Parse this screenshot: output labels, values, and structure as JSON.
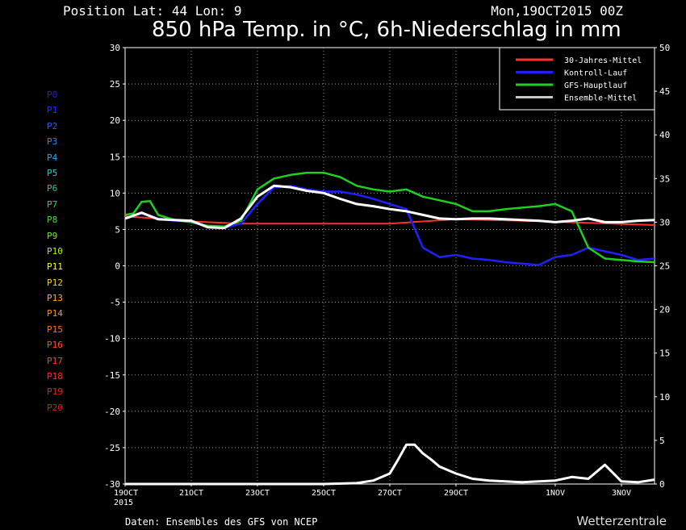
{
  "header": {
    "position": "Position   Lat: 44 Lon: 9",
    "date": "Mon,19OCT2015 00Z",
    "title": "850 hPa Temp. in °C, 6h-Niederschlag in mm"
  },
  "footer": {
    "source": "Daten: Ensembles des GFS von NCEP",
    "brand": "Wetterzentrale"
  },
  "members": [
    {
      "label": "P0",
      "color": "#2020e0"
    },
    {
      "label": "P1",
      "color": "#2030ff"
    },
    {
      "label": "P2",
      "color": "#2060ff"
    },
    {
      "label": "P3",
      "color": "#2090f0"
    },
    {
      "label": "P4",
      "color": "#20b0f0"
    },
    {
      "label": "P5",
      "color": "#20d0d0"
    },
    {
      "label": "P6",
      "color": "#20d080"
    },
    {
      "label": "P7",
      "color": "#20e040"
    },
    {
      "label": "P8",
      "color": "#40e020"
    },
    {
      "label": "P9",
      "color": "#70f020"
    },
    {
      "label": "P10",
      "color": "#b0f020"
    },
    {
      "label": "P11",
      "color": "#ffff20"
    },
    {
      "label": "P12",
      "color": "#ffd020"
    },
    {
      "label": "P13",
      "color": "#ffb020"
    },
    {
      "label": "P14",
      "color": "#ff9020"
    },
    {
      "label": "P15",
      "color": "#ff7020"
    },
    {
      "label": "P16",
      "color": "#ff5020"
    },
    {
      "label": "P17",
      "color": "#ff4020"
    },
    {
      "label": "P18",
      "color": "#ff3020"
    },
    {
      "label": "P19",
      "color": "#e02020"
    },
    {
      "label": "P20",
      "color": "#d02020"
    }
  ],
  "chart_data": {
    "type": "line",
    "x_range": [
      "19OCT2015 00Z",
      "4NOV2015 00Z"
    ],
    "x_step_hours": 6,
    "x_ticks": [
      {
        "label": "19OCT",
        "day": 0,
        "sub": "2015"
      },
      {
        "label": "21OCT",
        "day": 2
      },
      {
        "label": "23OCT",
        "day": 4
      },
      {
        "label": "25OCT",
        "day": 6
      },
      {
        "label": "27OCT",
        "day": 8
      },
      {
        "label": "29OCT",
        "day": 10
      },
      {
        "label": "1NOV",
        "day": 13
      },
      {
        "label": "3NOV",
        "day": 15
      }
    ],
    "y_left": {
      "min": -30,
      "max": 30,
      "ticks": [
        -30,
        -25,
        -20,
        -15,
        -10,
        -5,
        0,
        5,
        10,
        15,
        20,
        25,
        30
      ]
    },
    "y_right": {
      "min": 0,
      "max": 50,
      "ticks": [
        0,
        5,
        10,
        15,
        20,
        25,
        30,
        35,
        40,
        45,
        50
      ]
    },
    "grid": true,
    "legend_position": "top-right",
    "legend": [
      {
        "name": "30-Jahres-Mittel",
        "color": "#ff3030"
      },
      {
        "name": "Kontroll-Lauf",
        "color": "#2020ff"
      },
      {
        "name": "GFS-Hauptlauf",
        "color": "#20d020"
      },
      {
        "name": "Ensemble-Mittel",
        "color": "#c8c8c8"
      }
    ],
    "series": [
      {
        "name": "30-Jahres-Mittel",
        "axis": "left",
        "color": "#ff3030",
        "width": 2,
        "days": [
          0,
          1,
          2,
          3,
          3.5,
          4,
          6,
          8,
          10,
          12,
          14,
          16
        ],
        "values": [
          6.8,
          6.5,
          6.1,
          5.9,
          5.8,
          5.8,
          5.8,
          5.8,
          6.4,
          6.2,
          5.9,
          5.6
        ]
      },
      {
        "name": "Kontroll-Lauf",
        "axis": "left",
        "color": "#2020ff",
        "width": 2.5,
        "days": [
          0,
          0.5,
          1,
          1.5,
          2,
          2.5,
          3,
          3.5,
          4,
          4.5,
          5,
          5.5,
          6,
          6.5,
          7,
          7.5,
          8,
          8.5,
          9,
          9.5,
          10,
          10.5,
          11,
          11.5,
          12,
          12.5,
          13,
          13.5,
          14,
          14.5,
          15,
          15.5,
          16
        ],
        "values": [
          6.5,
          7.2,
          6.5,
          6.2,
          6.0,
          5.4,
          5.2,
          5.8,
          8.5,
          10.8,
          11.0,
          10.5,
          10.2,
          10.2,
          9.8,
          9.2,
          8.5,
          7.8,
          2.5,
          1.2,
          1.5,
          1.0,
          0.8,
          0.5,
          0.3,
          0.1,
          1.2,
          1.5,
          2.5,
          2.0,
          1.5,
          0.8,
          1.0
        ]
      },
      {
        "name": "GFS-Hauptlauf",
        "axis": "left",
        "color": "#20d020",
        "width": 2.5,
        "days": [
          0,
          0.25,
          0.5,
          0.75,
          1,
          1.5,
          2,
          2.5,
          3,
          3.5,
          4,
          4.5,
          5,
          5.5,
          6,
          6.5,
          7,
          7.5,
          8,
          8.5,
          9,
          9.5,
          10,
          10.5,
          11,
          11.5,
          12,
          12.5,
          13,
          13.5,
          14,
          14.5,
          15,
          15.5,
          16
        ],
        "values": [
          7.0,
          7.2,
          8.8,
          8.9,
          7.0,
          6.3,
          6.0,
          5.5,
          5.4,
          6.2,
          10.5,
          12.0,
          12.5,
          12.8,
          12.8,
          12.2,
          11.0,
          10.5,
          10.2,
          10.5,
          9.5,
          9.0,
          8.5,
          7.5,
          7.5,
          7.8,
          8.0,
          8.2,
          8.5,
          7.5,
          2.5,
          1.0,
          0.8,
          0.6,
          0.5
        ]
      },
      {
        "name": "Ensemble-Mittel",
        "axis": "left",
        "color": "#ffffff",
        "width": 3,
        "days": [
          0,
          0.5,
          1,
          1.5,
          2,
          2.5,
          3,
          3.5,
          4,
          4.5,
          5,
          5.5,
          6,
          6.5,
          7,
          7.5,
          8,
          8.5,
          9,
          9.5,
          10,
          10.5,
          11,
          11.5,
          12,
          12.5,
          13,
          13.5,
          14,
          14.5,
          15,
          15.5,
          16
        ],
        "values": [
          6.5,
          7.3,
          6.4,
          6.3,
          6.2,
          5.3,
          5.2,
          6.5,
          9.5,
          11.0,
          10.8,
          10.3,
          10.0,
          9.2,
          8.5,
          8.2,
          7.8,
          7.5,
          7.0,
          6.5,
          6.4,
          6.5,
          6.5,
          6.4,
          6.3,
          6.2,
          6.0,
          6.2,
          6.5,
          6.0,
          6.0,
          6.2,
          6.3
        ]
      },
      {
        "name": "Ensemble-Mittel Niederschlag",
        "axis": "right",
        "color": "#ffffff",
        "width": 3,
        "days": [
          0,
          6,
          7,
          7.5,
          8,
          8.25,
          8.5,
          8.75,
          9,
          9.25,
          9.5,
          10,
          10.5,
          11,
          11.5,
          12,
          12.5,
          13,
          13.5,
          14,
          14.5,
          15,
          15.5,
          16
        ],
        "values": [
          0,
          0,
          0.1,
          0.4,
          1.2,
          2.8,
          4.5,
          4.5,
          3.5,
          2.8,
          2.0,
          1.2,
          0.6,
          0.4,
          0.3,
          0.2,
          0.3,
          0.4,
          0.8,
          0.6,
          2.2,
          0.3,
          0.2,
          0.5
        ]
      }
    ]
  }
}
